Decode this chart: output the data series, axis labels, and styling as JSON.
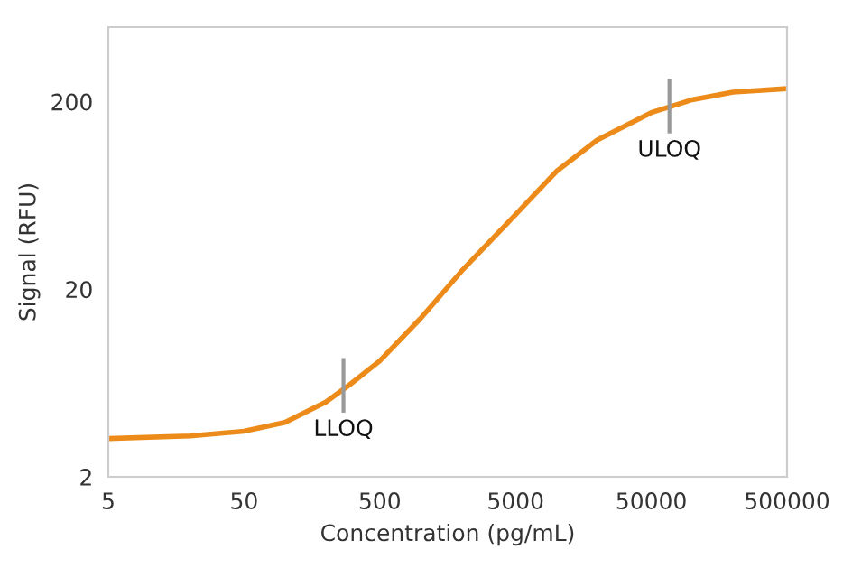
{
  "chart_data": {
    "type": "line",
    "xlabel": "Concentration (pg/mL)",
    "ylabel": "Signal (RFU)",
    "log": "xy",
    "x": [
      5,
      20,
      50,
      100,
      200,
      300,
      500,
      1000,
      2000,
      5000,
      10000,
      20000,
      50000,
      100000,
      200000,
      500000
    ],
    "series": [
      {
        "color": "#ed8b1a",
        "values": [
          3.2,
          3.3,
          3.5,
          3.9,
          5.0,
          6.2,
          8.3,
          14,
          25,
          50,
          85,
          125,
          175,
          205,
          225,
          235
        ]
      }
    ],
    "xlim": [
      5,
      500000
    ],
    "xticks": [
      5,
      50,
      500,
      5000,
      50000,
      500000
    ],
    "ylim": [
      2,
      500
    ],
    "yticks": [
      2,
      20,
      200
    ],
    "annotations": [
      {
        "text": "LLOQ",
        "x": 270,
        "y": 6
      },
      {
        "text": "ULOQ",
        "x": 68000,
        "y": 185
      }
    ],
    "grid": false,
    "legend": false,
    "marker": "none",
    "line_style": "solid"
  }
}
